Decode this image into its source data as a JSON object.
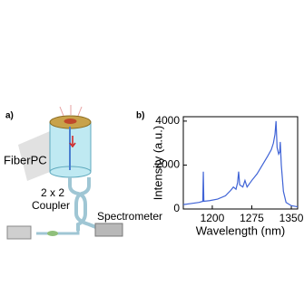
{
  "panel_a": {
    "label": "a)",
    "fiber_pc": "FiberPC",
    "coupler_line1": "2 x 2",
    "coupler_line2": "Coupler",
    "spectrometer": "Spectrometer"
  },
  "chart_data": {
    "type": "line",
    "panel_label": "b)",
    "xlabel": "Wavelength (nm)",
    "ylabel": "Intensity (a.u.)",
    "x": [
      1145,
      1160,
      1175,
      1182,
      1183,
      1184,
      1195,
      1210,
      1225,
      1235,
      1240,
      1245,
      1248,
      1250,
      1252,
      1258,
      1262,
      1266,
      1275,
      1285,
      1295,
      1305,
      1312,
      1316,
      1319,
      1321,
      1323,
      1326,
      1328,
      1329,
      1331,
      1335,
      1340,
      1350,
      1362
    ],
    "values": [
      200,
      250,
      300,
      350,
      1700,
      350,
      380,
      450,
      600,
      850,
      1000,
      900,
      1200,
      1700,
      1100,
      1000,
      1300,
      1000,
      1300,
      1600,
      2000,
      2400,
      2700,
      3000,
      3400,
      4000,
      2800,
      2500,
      2600,
      3050,
      2000,
      800,
      300,
      150,
      100
    ],
    "color": "#3f63d6",
    "xlim": [
      1145,
      1362
    ],
    "xticks": [
      1200,
      1275,
      1350
    ],
    "ylim": [
      0,
      4200
    ],
    "yticks": [
      0,
      2000,
      4000
    ]
  }
}
